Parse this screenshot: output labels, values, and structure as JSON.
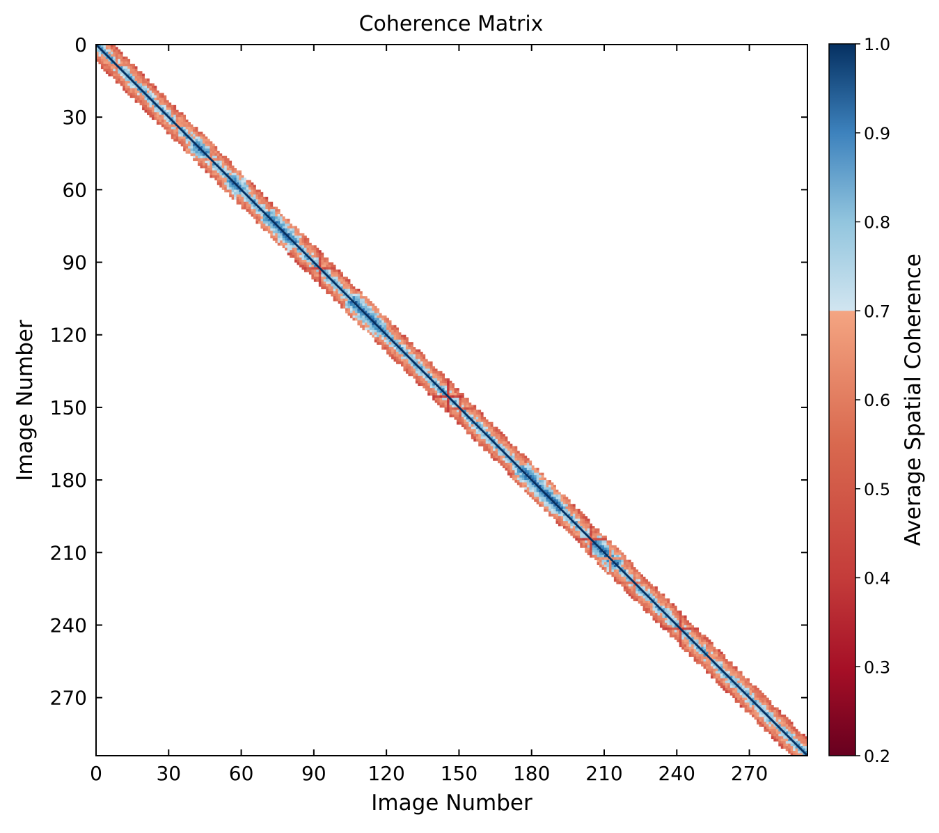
{
  "chart_data": {
    "type": "heatmap",
    "title": "Coherence Matrix",
    "xlabel": "Image Number",
    "ylabel": "Image Number",
    "n_images": 294,
    "xlim": [
      0,
      294
    ],
    "ylim": [
      294,
      0
    ],
    "x_ticks": [
      0,
      30,
      60,
      90,
      120,
      150,
      180,
      210,
      240,
      270
    ],
    "y_ticks": [
      0,
      30,
      60,
      90,
      120,
      150,
      180,
      210,
      240,
      270
    ],
    "band_halfwidth_images": 7,
    "diagonal_value": 1.0,
    "off_band_value": null,
    "low_coherence_events": [
      {
        "image": 8,
        "value": 0.58
      },
      {
        "image": 33,
        "value": 0.6
      },
      {
        "image": 47,
        "value": 0.6
      },
      {
        "image": 92,
        "value": 0.45
      },
      {
        "image": 145,
        "value": 0.42
      },
      {
        "image": 150,
        "value": 0.5
      },
      {
        "image": 204,
        "value": 0.45
      },
      {
        "image": 212,
        "value": 0.6
      },
      {
        "image": 222,
        "value": 0.55
      },
      {
        "image": 241,
        "value": 0.45
      },
      {
        "image": 253,
        "value": 0.6
      }
    ],
    "high_coherence_regions": [
      {
        "image_start": 40,
        "image_end": 45,
        "value": 0.9
      },
      {
        "image_start": 55,
        "image_end": 60,
        "value": 0.88
      },
      {
        "image_start": 70,
        "image_end": 82,
        "value": 0.86
      },
      {
        "image_start": 105,
        "image_end": 118,
        "value": 0.85
      },
      {
        "image_start": 175,
        "image_end": 192,
        "value": 0.85
      },
      {
        "image_start": 205,
        "image_end": 215,
        "value": 0.87
      }
    ],
    "colorbar": {
      "label": "Average Spatial Coherence",
      "range": [
        0.2,
        1.0
      ],
      "ticks": [
        "0.2",
        "0.3",
        "0.4",
        "0.5",
        "0.6",
        "0.7",
        "0.8",
        "0.9",
        "1.0"
      ],
      "colormap": "RdBu (split at 0.7)",
      "colors_low": [
        "#67001f",
        "#b2182b",
        "#d6604d",
        "#f4a582"
      ],
      "colors_high": [
        "#d1e5f0",
        "#92c5de",
        "#4393c3",
        "#2166ac",
        "#053061"
      ]
    }
  }
}
